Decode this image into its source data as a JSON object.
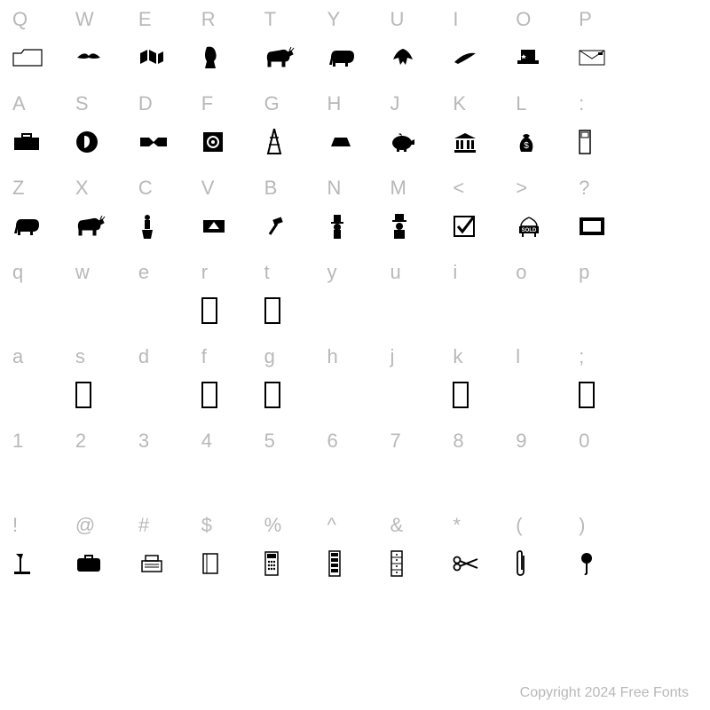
{
  "copyright": "Copyright 2024 Free Fonts",
  "grid": {
    "columns": 11,
    "label_color": "#b8b8b8",
    "label_fontsize": 22,
    "glyph_color": "#000000",
    "background": "#ffffff"
  },
  "rows": [
    {
      "chars": [
        "Q",
        "W",
        "E",
        "R",
        "T",
        "Y",
        "U",
        "I",
        "O",
        "P",
        ""
      ],
      "glyphs": [
        "folder",
        "bird-flying",
        "books",
        "bust-profile",
        "donkey",
        "elephant",
        "eagle",
        "feather-pen",
        "top-hat-stars",
        "envelope",
        ""
      ]
    },
    {
      "chars": [
        "A",
        "S",
        "D",
        "F",
        "G",
        "H",
        "J",
        "K",
        "L",
        ":",
        ""
      ],
      "glyphs": [
        "briefcase",
        "coin-profile",
        "handshake",
        "safe",
        "oil-derrick",
        "gold-bar",
        "piggy-bank",
        "bank-building",
        "money-bag",
        "door",
        ""
      ]
    },
    {
      "chars": [
        "Z",
        "X",
        "C",
        "V",
        "B",
        "N",
        "M",
        "<",
        ">",
        "?",
        ""
      ],
      "glyphs": [
        "elephant-2",
        "donkey-2",
        "person-podium",
        "eagle-flag",
        "gavel",
        "uncle-sam",
        "top-hat-man",
        "checkbox",
        "sold-sign",
        "frame",
        ""
      ]
    },
    {
      "chars": [
        "q",
        "w",
        "e",
        "r",
        "t",
        "y",
        "u",
        "i",
        "o",
        "p",
        ""
      ],
      "glyphs": [
        "",
        "",
        "",
        "empty",
        "empty",
        "",
        "",
        "",
        "",
        "",
        ""
      ]
    },
    {
      "chars": [
        "a",
        "s",
        "d",
        "f",
        "g",
        "h",
        "j",
        "k",
        "l",
        ";",
        ""
      ],
      "glyphs": [
        "",
        "empty",
        "",
        "empty",
        "empty",
        "",
        "",
        "empty",
        "",
        "empty",
        ""
      ]
    },
    {
      "chars": [
        "1",
        "2",
        "3",
        "4",
        "5",
        "6",
        "7",
        "8",
        "9",
        "0",
        ""
      ],
      "glyphs": [
        "",
        "",
        "",
        "",
        "",
        "",
        "",
        "",
        "",
        "",
        ""
      ]
    },
    {
      "chars": [
        "!",
        "@",
        "#",
        "$",
        "%",
        "^",
        "&",
        "*",
        "(",
        ")",
        ""
      ],
      "glyphs": [
        "desk-lamp",
        "briefcase-solid",
        "typewriter",
        "notebook",
        "calculator",
        "server-rack",
        "drawer-unit",
        "scissors",
        "paperclip",
        "pushpin",
        ""
      ]
    }
  ]
}
